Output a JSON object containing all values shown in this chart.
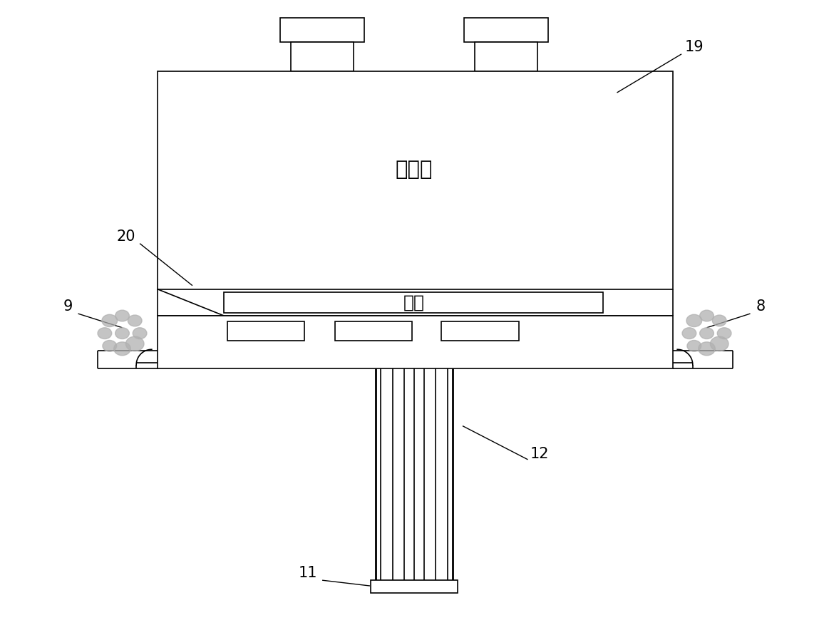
{
  "bg_color": "#ffffff",
  "line_color": "#000000",
  "label_color": "#000000",
  "fontsize_label": 15,
  "fontsize_chinese": 18,
  "gray": "#b0b0b0",
  "lw_main": 2.0,
  "lw_thin": 1.2,
  "lw_label": 1.0
}
